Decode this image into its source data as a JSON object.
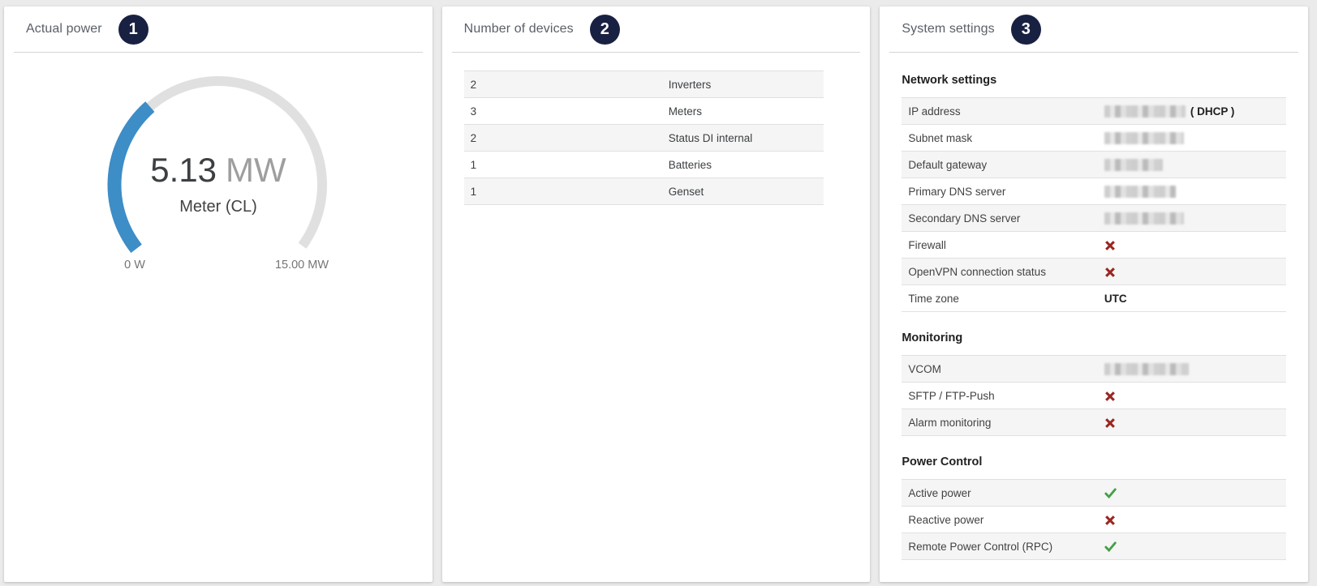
{
  "colors": {
    "page_background": "#ebebeb",
    "badge": "#192142",
    "accent_blue": "#3d8dc7",
    "gauge_track": "#e0e0e0",
    "check_green": "#43a047",
    "cross_red": "#992621"
  },
  "chart_data": {
    "type": "gauge",
    "title": "Actual power",
    "value": 5.13,
    "display_value": "5.13",
    "unit": "MW",
    "label": "Meter (CL)",
    "min": 0,
    "max": 15,
    "min_label": "0 W",
    "max_label": "15.00 MW",
    "start_angle": 218,
    "end_angle": -36,
    "colors": {
      "progress": "#3d8dc7",
      "track": "#e0e0e0"
    }
  },
  "panels": {
    "actual_power": {
      "title": "Actual power",
      "badge": "1"
    },
    "devices": {
      "title": "Number of devices",
      "badge": "2",
      "rows": [
        {
          "count": "2",
          "name": "Inverters"
        },
        {
          "count": "3",
          "name": "Meters"
        },
        {
          "count": "2",
          "name": "Status DI internal"
        },
        {
          "count": "1",
          "name": "Batteries"
        },
        {
          "count": "1",
          "name": "Genset"
        }
      ]
    },
    "system_settings": {
      "title": "System settings",
      "badge": "3",
      "sections": [
        {
          "heading": "Network settings",
          "rows": [
            {
              "label": "IP address",
              "type": "redacted",
              "redacted_width": 100,
              "suffix": "( DHCP )"
            },
            {
              "label": "Subnet mask",
              "type": "redacted",
              "redacted_width": 98
            },
            {
              "label": "Default gateway",
              "type": "redacted",
              "redacted_width": 72
            },
            {
              "label": "Primary DNS server",
              "type": "redacted",
              "redacted_width": 88
            },
            {
              "label": "Secondary DNS server",
              "type": "redacted",
              "redacted_width": 98
            },
            {
              "label": "Firewall",
              "type": "cross"
            },
            {
              "label": "OpenVPN connection status",
              "type": "cross"
            },
            {
              "label": "Time zone",
              "type": "text",
              "value": "UTC"
            }
          ]
        },
        {
          "heading": "Monitoring",
          "rows": [
            {
              "label": "VCOM",
              "type": "redacted",
              "redacted_width": 104
            },
            {
              "label": "SFTP / FTP-Push",
              "type": "cross"
            },
            {
              "label": "Alarm monitoring",
              "type": "cross"
            }
          ]
        },
        {
          "heading": "Power Control",
          "rows": [
            {
              "label": "Active power",
              "type": "check"
            },
            {
              "label": "Reactive power",
              "type": "cross"
            },
            {
              "label": "Remote Power Control (RPC)",
              "type": "check"
            }
          ]
        }
      ]
    }
  }
}
